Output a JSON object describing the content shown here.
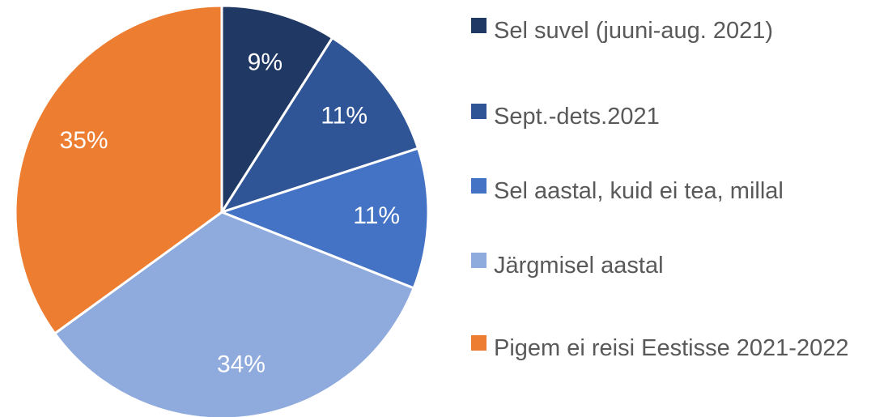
{
  "chart_data": {
    "type": "pie",
    "categories": [
      "Sel suvel (juuni-aug. 2021)",
      "Sept.-dets.2021",
      "Sel aastal, kuid ei tea, millal",
      "Järgmisel aastal",
      "Pigem ei reisi Eestisse 2021-2022"
    ],
    "values": [
      9,
      11,
      11,
      34,
      35
    ],
    "value_labels": [
      "9%",
      "11%",
      "11%",
      "34%",
      "35%"
    ],
    "colors": [
      "#203864",
      "#2f5597",
      "#4472c4",
      "#8faadc",
      "#ed7d31"
    ],
    "legend": "right"
  }
}
